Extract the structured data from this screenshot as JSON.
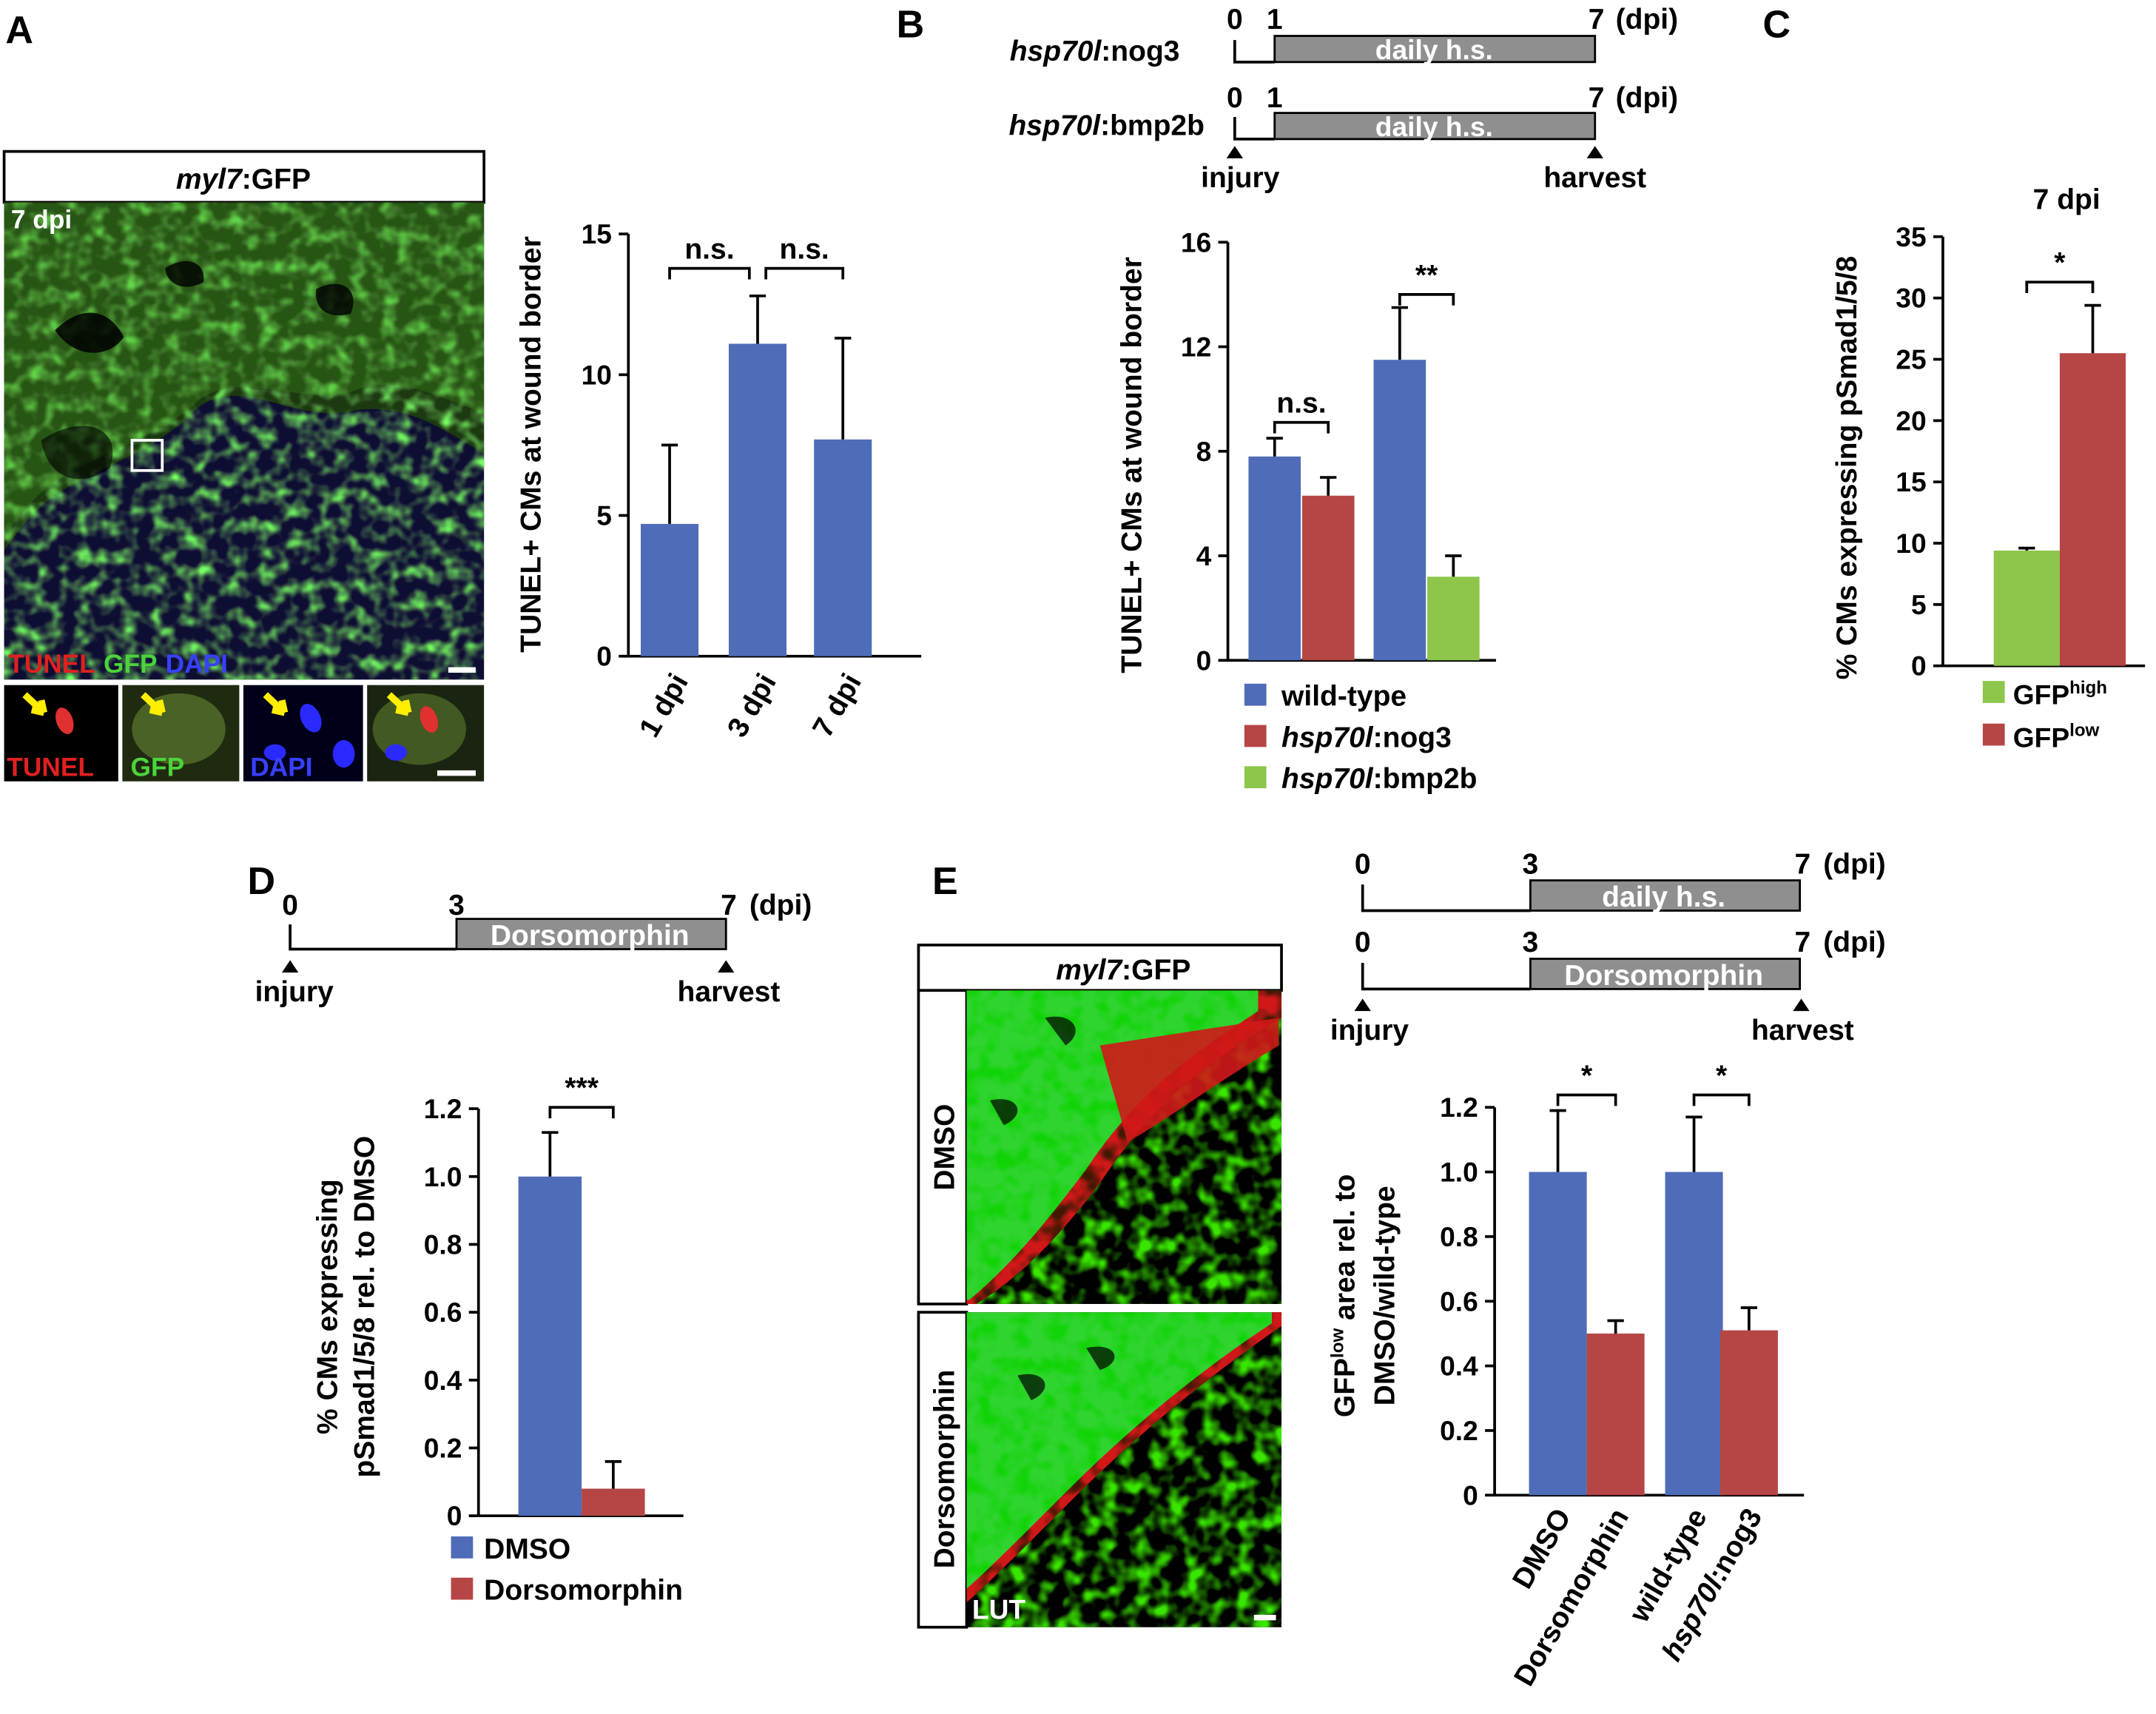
{
  "panels": {
    "a": {
      "letter": "A",
      "image_title_italic": "myl7",
      "image_title_rest": ":GFP",
      "image_timepoint": "7 dpi",
      "stains": [
        "TUNEL",
        "GFP",
        "DAPI"
      ]
    },
    "b": {
      "letter": "B",
      "timelines": [
        {
          "label_italic": "hsp70l",
          "label_rest": ":nog3",
          "start": "0",
          "treat_start": "1",
          "end": "7",
          "unit": "(dpi)",
          "treatment": "daily h.s."
        },
        {
          "label_italic": "hsp70l",
          "label_rest": ":bmp2b",
          "start": "0",
          "treat_start": "1",
          "end": "7",
          "unit": "(dpi)",
          "treatment": "daily h.s."
        }
      ],
      "injury_label": "injury",
      "harvest_label": "harvest",
      "legend": [
        {
          "label": "wild-type"
        },
        {
          "label_italic": "hsp70l",
          "label_rest": ":nog3"
        },
        {
          "label_italic": "hsp70l",
          "label_rest": ":bmp2b"
        }
      ]
    },
    "c": {
      "letter": "C",
      "title": "7 dpi",
      "legend": [
        {
          "base": "GFP",
          "sup": "high"
        },
        {
          "base": "GFP",
          "sup": "low"
        }
      ]
    },
    "d": {
      "letter": "D",
      "timeline": {
        "start": "0",
        "treat_start": "3",
        "end": "7",
        "unit": "(dpi)",
        "treatment": "Dorsomorphin",
        "injury": "injury",
        "harvest": "harvest"
      },
      "legend": [
        "DMSO",
        "Dorsomorphin"
      ]
    },
    "e": {
      "letter": "E",
      "image_title_italic": "myl7",
      "image_title_rest": ":GFP",
      "rows": [
        "DMSO",
        "Dorsomorphin"
      ],
      "lut_label": "LUT",
      "timelines": [
        {
          "start": "0",
          "treat_start": "3",
          "end": "7",
          "unit": "(dpi)",
          "treatment": "daily h.s."
        },
        {
          "start": "0",
          "treat_start": "3",
          "end": "7",
          "unit": "(dpi)",
          "treatment": "Dorsomorphin"
        }
      ],
      "injury_label": "injury",
      "harvest_label": "harvest"
    }
  },
  "colors": {
    "blue": "#4f6cb8",
    "red": "#b54645",
    "green": "#8dc64b"
  },
  "chart_data": [
    {
      "panel": "A",
      "type": "bar",
      "ylabel": "TUNEL+ CMs at wound border",
      "ylim": [
        0,
        15
      ],
      "yticks": [
        "0",
        "5",
        "10",
        "15"
      ],
      "categories": [
        "1 dpi",
        "3 dpi",
        "7 dpi"
      ],
      "series": [
        {
          "values": [
            4.7,
            11.1,
            7.7
          ],
          "errors": [
            2.8,
            1.7,
            3.6
          ],
          "color": "#4f6cb8"
        }
      ],
      "annotations": [
        {
          "between": [
            0,
            1
          ],
          "text": "n.s."
        },
        {
          "between": [
            1,
            2
          ],
          "text": "n.s."
        }
      ]
    },
    {
      "panel": "B",
      "type": "bar",
      "ylabel": "TUNEL+ CMs at wound border",
      "ylim": [
        0,
        16
      ],
      "yticks": [
        "0",
        "4",
        "8",
        "12",
        "16"
      ],
      "groups": [
        {
          "bars": [
            {
              "value": 7.8,
              "error": 0.7,
              "color": "#4f6cb8"
            },
            {
              "value": 6.3,
              "error": 0.7,
              "color": "#b54645"
            }
          ],
          "annotation": "n.s."
        },
        {
          "bars": [
            {
              "value": 11.5,
              "error": 2.0,
              "color": "#4f6cb8"
            },
            {
              "value": 3.2,
              "error": 0.8,
              "color": "#8dc64b"
            }
          ],
          "annotation": "**"
        }
      ]
    },
    {
      "panel": "C",
      "type": "bar",
      "title": "7 dpi",
      "ylabel": "% CMs expressing pSmad1/5/8",
      "ylim": [
        0,
        35
      ],
      "yticks": [
        "0",
        "5",
        "10",
        "15",
        "20",
        "25",
        "30",
        "35"
      ],
      "bars": [
        {
          "value": 9.4,
          "error": 0.2,
          "color": "#8dc64b"
        },
        {
          "value": 25.5,
          "error": 3.9,
          "color": "#b54645"
        }
      ],
      "annotation": "*"
    },
    {
      "panel": "D",
      "type": "bar",
      "ylabel_lines": [
        "%  CMs expressing",
        "pSmad1/5/8 rel. to DMSO"
      ],
      "ylim": [
        0,
        1.2
      ],
      "yticks": [
        "0",
        "0.2",
        "0.4",
        "0.6",
        "0.8",
        "1.0",
        "1.2"
      ],
      "bars": [
        {
          "value": 1.0,
          "error": 0.13,
          "color": "#4f6cb8"
        },
        {
          "value": 0.08,
          "error": 0.08,
          "color": "#b54645"
        }
      ],
      "annotation": "***"
    },
    {
      "panel": "E",
      "type": "bar",
      "ylabel_line1_base": "GFP",
      "ylabel_line1_sup": "low",
      "ylabel_line1_rest": " area rel. to",
      "ylabel_line2": "DMSO/wild-type",
      "ylim": [
        0,
        1.2
      ],
      "yticks": [
        "0",
        "0.2",
        "0.4",
        "0.6",
        "0.8",
        "1.0",
        "1.2"
      ],
      "categories": [
        {
          "text": "DMSO",
          "italic": ""
        },
        {
          "text": "Dorsomorphin",
          "italic": ""
        },
        {
          "text": "wild-type",
          "italic": ""
        },
        {
          "text": ":nog3",
          "italic": "hsp70l"
        }
      ],
      "groups": [
        {
          "bars": [
            {
              "value": 1.0,
              "error": 0.19,
              "color": "#4f6cb8"
            },
            {
              "value": 0.5,
              "error": 0.04,
              "color": "#b54645"
            }
          ],
          "annotation": "*"
        },
        {
          "bars": [
            {
              "value": 1.0,
              "error": 0.17,
              "color": "#4f6cb8"
            },
            {
              "value": 0.51,
              "error": 0.07,
              "color": "#b54645"
            }
          ],
          "annotation": "*"
        }
      ]
    }
  ]
}
